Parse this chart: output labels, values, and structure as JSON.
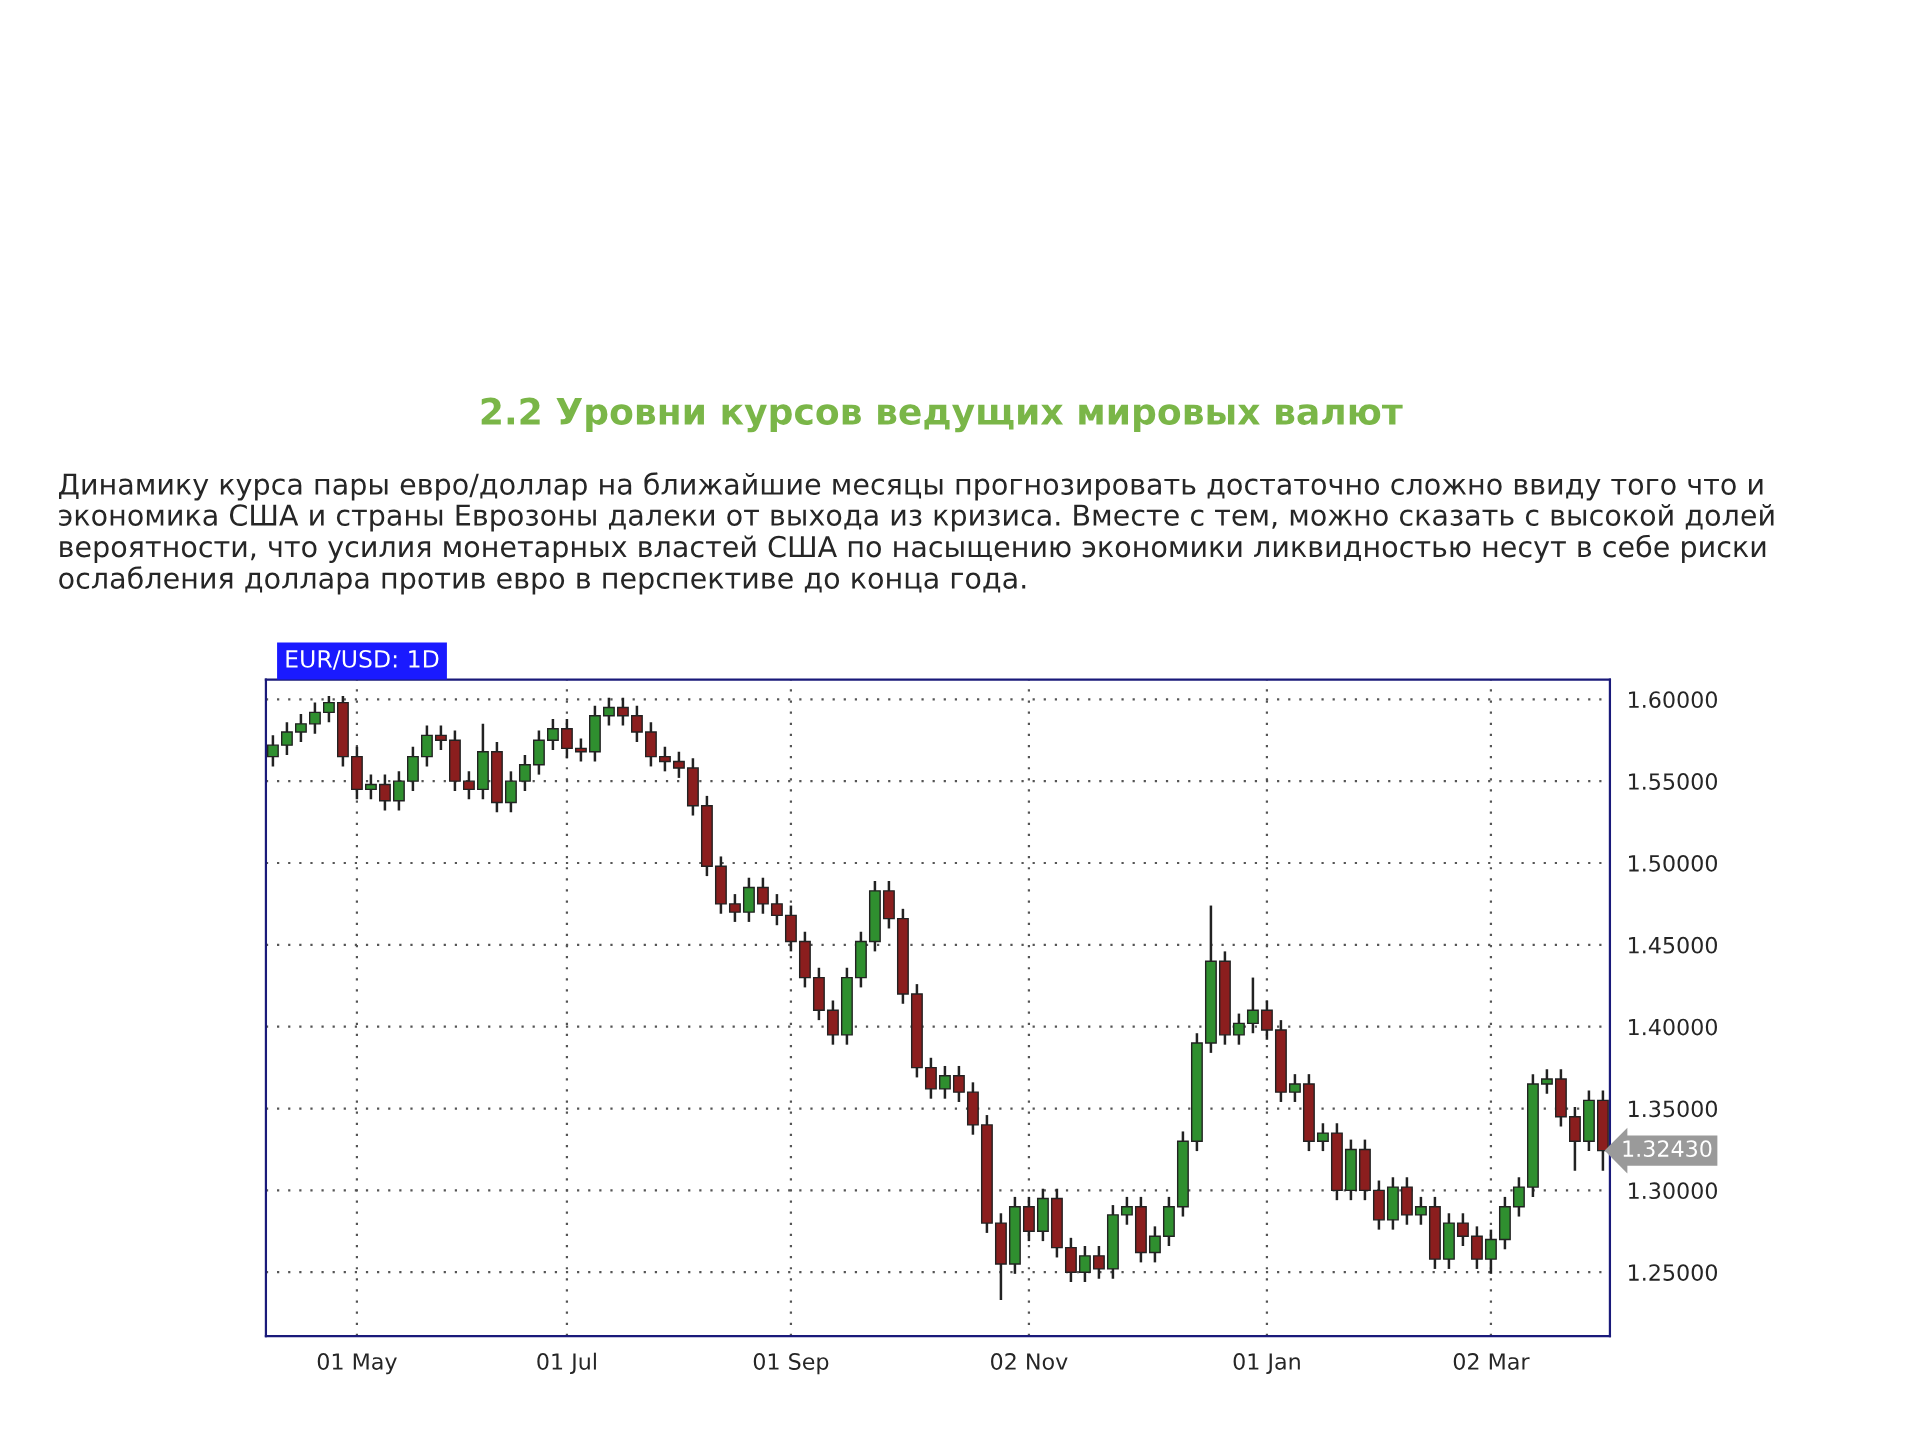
{
  "chart_data": {
    "type": "candlestick",
    "title": "2.2 Уровни курсов ведущих мировых валют",
    "subtitle": "Динамику курса пары евро/доллар на ближайшие месяцы прогнозировать достаточно сложно ввиду того что и экономика США и страны Еврозоны далеки от выхода из кризиса. Вместе с тем, можно сказать с высокой долей вероятности, что усилия монетарных властей США по насыщению экономики ликвидностью несут в себе риски ослабления доллара против евро в перспективе до конца года.",
    "annotations": [
      "EUR/USD: 1D",
      "1.32430"
    ],
    "categories": [
      null,
      null,
      null,
      null,
      null,
      null,
      "01 May",
      null,
      null,
      null,
      null,
      null,
      null,
      null,
      null,
      null,
      null,
      null,
      null,
      null,
      null,
      "01 Jul",
      null,
      null,
      null,
      null,
      null,
      null,
      null,
      null,
      null,
      null,
      null,
      null,
      null,
      null,
      null,
      "01 Sep",
      null,
      null,
      null,
      null,
      null,
      null,
      null,
      null,
      null,
      null,
      null,
      null,
      null,
      null,
      null,
      null,
      "02 Nov",
      null,
      null,
      null,
      null,
      null,
      null,
      null,
      null,
      null,
      null,
      null,
      null,
      null,
      null,
      null,
      null,
      "01 Jan",
      null,
      null,
      null,
      null,
      null,
      null,
      null,
      null,
      null,
      null,
      null,
      null,
      null,
      null,
      null,
      "02 Mar",
      null,
      null,
      null,
      null,
      null,
      null,
      null,
      null
    ],
    "ohlc": [
      [
        1.565,
        1.578,
        1.559,
        1.572
      ],
      [
        1.572,
        1.586,
        1.566,
        1.58
      ],
      [
        1.58,
        1.591,
        1.574,
        1.585
      ],
      [
        1.585,
        1.598,
        1.579,
        1.592
      ],
      [
        1.592,
        1.602,
        1.586,
        1.598
      ],
      [
        1.598,
        1.602,
        1.559,
        1.565
      ],
      [
        1.565,
        1.571,
        1.539,
        1.545
      ],
      [
        1.545,
        1.554,
        1.539,
        1.548
      ],
      [
        1.548,
        1.554,
        1.532,
        1.538
      ],
      [
        1.538,
        1.556,
        1.532,
        1.55
      ],
      [
        1.55,
        1.571,
        1.544,
        1.565
      ],
      [
        1.565,
        1.584,
        1.559,
        1.578
      ],
      [
        1.578,
        1.584,
        1.569,
        1.575
      ],
      [
        1.575,
        1.581,
        1.544,
        1.55
      ],
      [
        1.55,
        1.556,
        1.539,
        1.545
      ],
      [
        1.545,
        1.585,
        1.539,
        1.568
      ],
      [
        1.568,
        1.574,
        1.531,
        1.537
      ],
      [
        1.537,
        1.556,
        1.531,
        1.55
      ],
      [
        1.55,
        1.566,
        1.544,
        1.56
      ],
      [
        1.56,
        1.581,
        1.554,
        1.575
      ],
      [
        1.575,
        1.588,
        1.569,
        1.582
      ],
      [
        1.582,
        1.588,
        1.564,
        1.57
      ],
      [
        1.57,
        1.576,
        1.562,
        1.568
      ],
      [
        1.568,
        1.596,
        1.562,
        1.59
      ],
      [
        1.59,
        1.601,
        1.584,
        1.595
      ],
      [
        1.595,
        1.601,
        1.584,
        1.59
      ],
      [
        1.59,
        1.596,
        1.574,
        1.58
      ],
      [
        1.58,
        1.586,
        1.559,
        1.565
      ],
      [
        1.565,
        1.571,
        1.556,
        1.562
      ],
      [
        1.562,
        1.568,
        1.552,
        1.558
      ],
      [
        1.558,
        1.564,
        1.529,
        1.535
      ],
      [
        1.535,
        1.541,
        1.492,
        1.498
      ],
      [
        1.498,
        1.504,
        1.469,
        1.475
      ],
      [
        1.475,
        1.481,
        1.464,
        1.47
      ],
      [
        1.47,
        1.491,
        1.464,
        1.485
      ],
      [
        1.485,
        1.491,
        1.469,
        1.475
      ],
      [
        1.475,
        1.481,
        1.462,
        1.468
      ],
      [
        1.468,
        1.474,
        1.446,
        1.452
      ],
      [
        1.452,
        1.458,
        1.424,
        1.43
      ],
      [
        1.43,
        1.436,
        1.404,
        1.41
      ],
      [
        1.41,
        1.416,
        1.389,
        1.395
      ],
      [
        1.395,
        1.436,
        1.389,
        1.43
      ],
      [
        1.43,
        1.458,
        1.424,
        1.452
      ],
      [
        1.452,
        1.489,
        1.446,
        1.483
      ],
      [
        1.483,
        1.489,
        1.46,
        1.466
      ],
      [
        1.466,
        1.472,
        1.414,
        1.42
      ],
      [
        1.42,
        1.426,
        1.369,
        1.375
      ],
      [
        1.375,
        1.381,
        1.356,
        1.362
      ],
      [
        1.362,
        1.376,
        1.356,
        1.37
      ],
      [
        1.37,
        1.376,
        1.354,
        1.36
      ],
      [
        1.36,
        1.366,
        1.334,
        1.34
      ],
      [
        1.34,
        1.346,
        1.274,
        1.28
      ],
      [
        1.28,
        1.286,
        1.233,
        1.255
      ],
      [
        1.255,
        1.296,
        1.249,
        1.29
      ],
      [
        1.29,
        1.296,
        1.269,
        1.275
      ],
      [
        1.275,
        1.301,
        1.269,
        1.295
      ],
      [
        1.295,
        1.301,
        1.259,
        1.265
      ],
      [
        1.265,
        1.271,
        1.244,
        1.25
      ],
      [
        1.25,
        1.266,
        1.244,
        1.26
      ],
      [
        1.26,
        1.266,
        1.246,
        1.252
      ],
      [
        1.252,
        1.291,
        1.246,
        1.285
      ],
      [
        1.285,
        1.296,
        1.279,
        1.29
      ],
      [
        1.29,
        1.296,
        1.256,
        1.262
      ],
      [
        1.262,
        1.278,
        1.256,
        1.272
      ],
      [
        1.272,
        1.296,
        1.266,
        1.29
      ],
      [
        1.29,
        1.336,
        1.284,
        1.33
      ],
      [
        1.33,
        1.396,
        1.324,
        1.39
      ],
      [
        1.39,
        1.474,
        1.384,
        1.44
      ],
      [
        1.44,
        1.446,
        1.389,
        1.395
      ],
      [
        1.395,
        1.408,
        1.389,
        1.402
      ],
      [
        1.402,
        1.43,
        1.396,
        1.41
      ],
      [
        1.41,
        1.416,
        1.392,
        1.398
      ],
      [
        1.398,
        1.404,
        1.354,
        1.36
      ],
      [
        1.36,
        1.371,
        1.354,
        1.365
      ],
      [
        1.365,
        1.371,
        1.324,
        1.33
      ],
      [
        1.33,
        1.341,
        1.324,
        1.335
      ],
      [
        1.335,
        1.341,
        1.294,
        1.3
      ],
      [
        1.3,
        1.331,
        1.294,
        1.325
      ],
      [
        1.325,
        1.331,
        1.294,
        1.3
      ],
      [
        1.3,
        1.306,
        1.276,
        1.282
      ],
      [
        1.282,
        1.308,
        1.276,
        1.302
      ],
      [
        1.302,
        1.308,
        1.279,
        1.285
      ],
      [
        1.285,
        1.296,
        1.279,
        1.29
      ],
      [
        1.29,
        1.296,
        1.252,
        1.258
      ],
      [
        1.258,
        1.286,
        1.252,
        1.28
      ],
      [
        1.28,
        1.286,
        1.266,
        1.272
      ],
      [
        1.272,
        1.278,
        1.252,
        1.258
      ],
      [
        1.258,
        1.276,
        1.249,
        1.27
      ],
      [
        1.27,
        1.296,
        1.264,
        1.29
      ],
      [
        1.29,
        1.308,
        1.284,
        1.302
      ],
      [
        1.302,
        1.371,
        1.296,
        1.365
      ],
      [
        1.365,
        1.374,
        1.359,
        1.368
      ],
      [
        1.368,
        1.374,
        1.339,
        1.345
      ],
      [
        1.345,
        1.351,
        1.312,
        1.33
      ],
      [
        1.33,
        1.361,
        1.324,
        1.355
      ],
      [
        1.355,
        1.361,
        1.312,
        1.3243
      ]
    ],
    "ylim": [
      1.211,
      1.612
    ],
    "yticks": [
      {
        "value": 1.25,
        "label": "1.25000"
      },
      {
        "value": 1.3,
        "label": "1.30000"
      },
      {
        "value": 1.35,
        "label": "1.35000"
      },
      {
        "value": 1.4,
        "label": "1.40000"
      },
      {
        "value": 1.45,
        "label": "1.45000"
      },
      {
        "value": 1.5,
        "label": "1.50000"
      },
      {
        "value": 1.55,
        "label": "1.55000"
      },
      {
        "value": 1.6,
        "label": "1.60000"
      }
    ],
    "grid": true
  }
}
